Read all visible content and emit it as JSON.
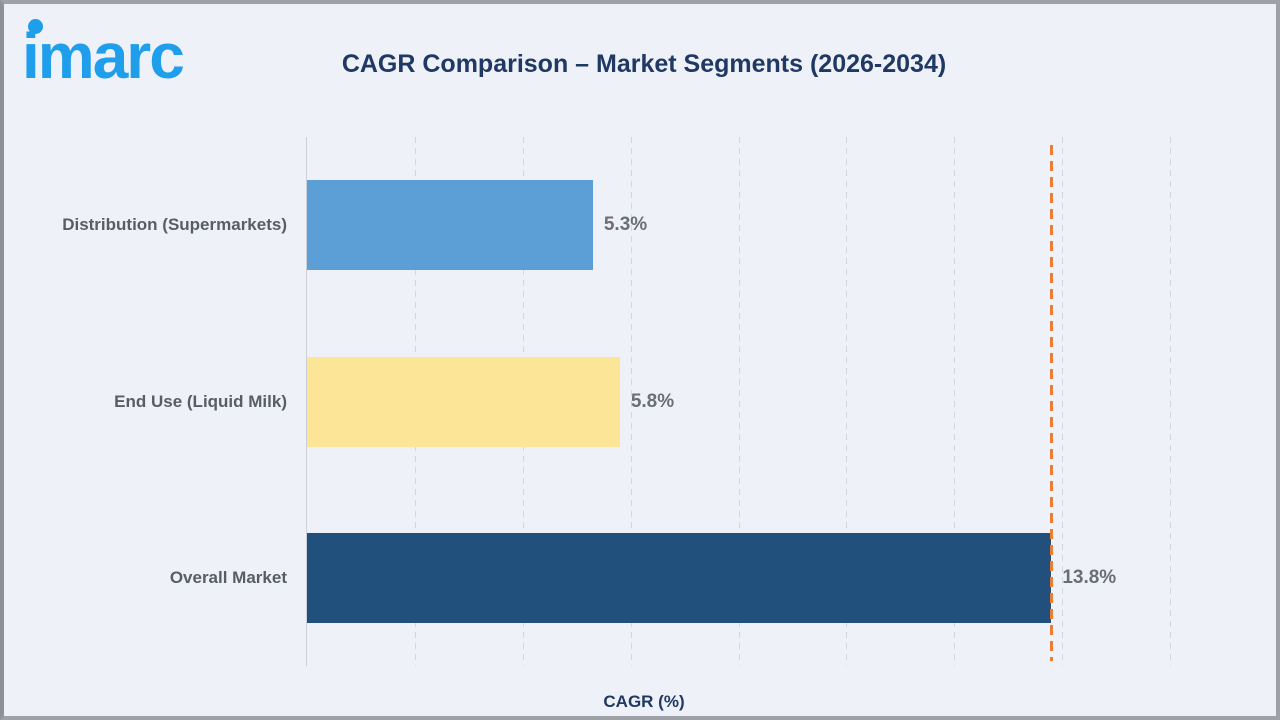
{
  "header": {
    "logo_text": "imarc",
    "logo_color": "#1e9eeb",
    "title": "CAGR Comparison – Market Segments (2026-2034)",
    "title_color": "#1f3864"
  },
  "chart_data": {
    "type": "bar",
    "orientation": "horizontal",
    "title": "CAGR Comparison – Market Segments (2026-2034)",
    "categories": [
      "Distribution (Supermarkets)",
      "End Use (Liquid Milk)",
      "Overall Market"
    ],
    "values": [
      5.3,
      5.8,
      13.8
    ],
    "value_labels": [
      "5.3%",
      "5.8%",
      "13.8%"
    ],
    "bar_colors": [
      "#5b9fd6",
      "#fce597",
      "#21507c"
    ],
    "xlabel": "CAGR (%)",
    "ylabel": "",
    "xlim": [
      0,
      16
    ],
    "gridline_step": 2,
    "grid": "vertical-dashed",
    "gridline_color": "#d2d6dd",
    "legend": "none",
    "reference_line": {
      "value": 13.8,
      "color": "#ed7d31",
      "style": "dashed"
    },
    "value_label_color": "#6a6e76",
    "category_label_color": "#595d64"
  }
}
